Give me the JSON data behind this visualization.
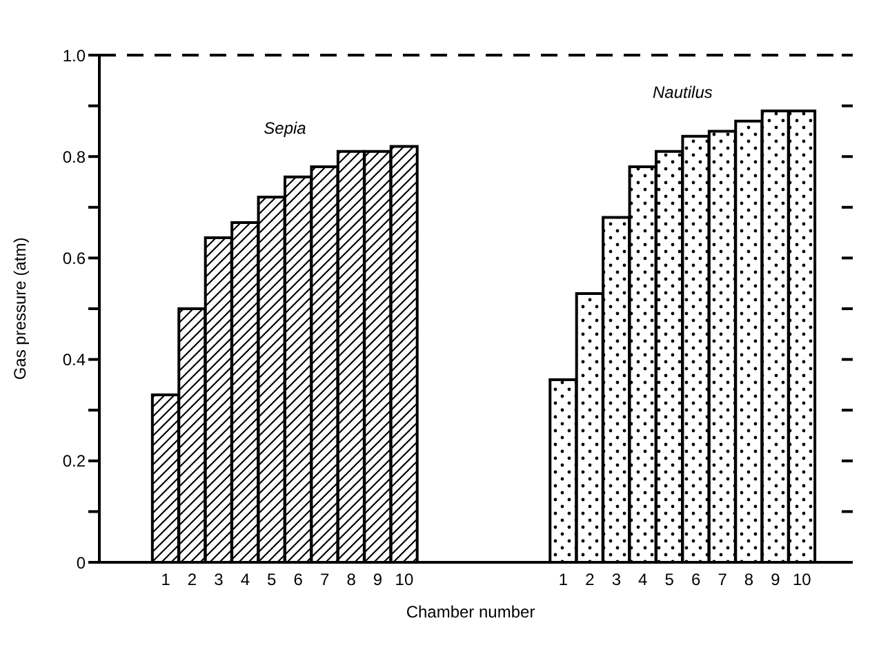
{
  "chart_data": {
    "type": "bar",
    "xlabel": "Chamber number",
    "ylabel": "Gas pressure (atm)",
    "categories": [
      null,
      null,
      "1",
      "2",
      "3",
      "4",
      "5",
      "6",
      "7",
      "8",
      "9",
      "10",
      null,
      null,
      null,
      null,
      null,
      "1",
      "2",
      "3",
      "4",
      "5",
      "6",
      "7",
      "8",
      "9",
      "10",
      null
    ],
    "series": [
      {
        "name": "Sepia",
        "color": "#000000",
        "values": [
          null,
          null,
          0.33,
          0.5,
          0.64,
          0.67,
          0.72,
          0.76,
          0.78,
          0.81,
          0.81,
          0.82,
          null,
          null,
          null,
          null,
          null,
          null,
          null,
          null,
          null,
          null,
          null,
          null,
          null,
          null,
          null,
          null
        ]
      },
      {
        "name": "Nautilus",
        "color": "#000000",
        "values": [
          null,
          null,
          null,
          null,
          null,
          null,
          null,
          null,
          null,
          null,
          null,
          null,
          null,
          null,
          null,
          null,
          null,
          0.36,
          0.53,
          0.68,
          0.78,
          0.81,
          0.84,
          0.85,
          0.87,
          0.89,
          0.89,
          null
        ]
      }
    ],
    "ylim": [
      0,
      1
    ],
    "yticks": [
      0,
      {
        "value": 0.1,
        "label": null
      },
      0.2,
      {
        "value": 0.3,
        "label": null
      },
      0.4,
      {
        "value": 0.5,
        "label": null
      },
      0.6,
      {
        "value": 0.7,
        "label": null
      },
      0.8,
      {
        "value": 0.9,
        "label": null
      },
      {
        "value": 1,
        "label": "1.0"
      }
    ],
    "ref_lines": [
      {
        "axis": "y",
        "value": 1,
        "line_style": "dashed",
        "color": "#000000"
      }
    ],
    "grid": false
  }
}
